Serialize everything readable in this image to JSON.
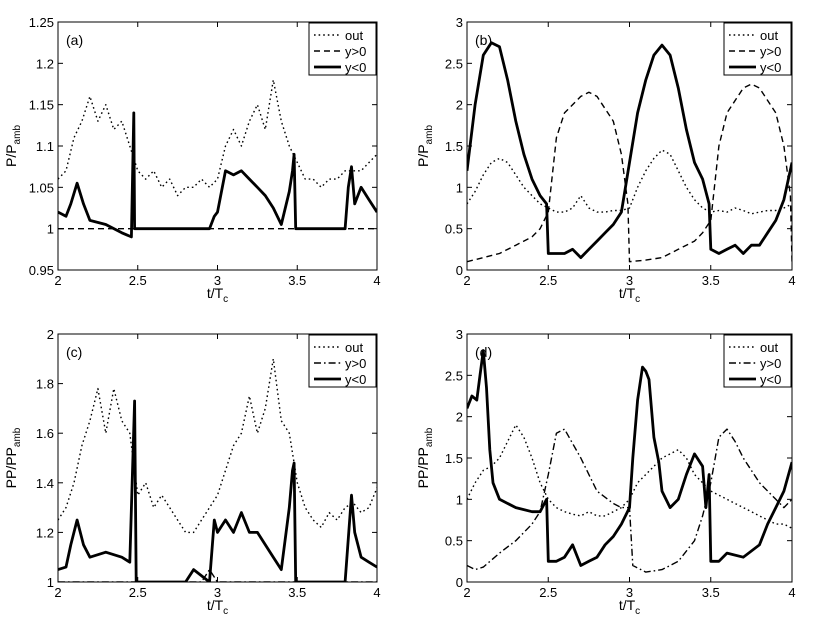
{
  "chart_data": [
    {
      "type": "line",
      "panel_label": "(a)",
      "xlabel": "t/T",
      "xlabel_sub": "c",
      "ylabel": "P/P",
      "ylabel_sub": "amb",
      "xlim": [
        2,
        4
      ],
      "ylim": [
        0.95,
        1.25
      ],
      "xticks": [
        "2",
        "2.5",
        "3",
        "3.5",
        "4"
      ],
      "yticks": [
        "0.95",
        "1",
        "1.05",
        "1.1",
        "1.15",
        "1.2",
        "1.25"
      ],
      "legend": [
        "out",
        "y>0",
        "y<0"
      ],
      "series": [
        {
          "name": "out",
          "style": "dotted",
          "x": [
            2,
            2.05,
            2.1,
            2.15,
            2.2,
            2.25,
            2.3,
            2.35,
            2.4,
            2.45,
            2.5,
            2.55,
            2.6,
            2.65,
            2.7,
            2.75,
            2.8,
            2.85,
            2.9,
            2.95,
            3,
            3.05,
            3.1,
            3.15,
            3.2,
            3.25,
            3.3,
            3.35,
            3.4,
            3.45,
            3.5,
            3.55,
            3.6,
            3.65,
            3.7,
            3.75,
            3.8,
            3.85,
            3.9,
            3.95,
            4
          ],
          "values": [
            1.06,
            1.07,
            1.11,
            1.13,
            1.16,
            1.13,
            1.15,
            1.12,
            1.13,
            1.1,
            1.07,
            1.06,
            1.07,
            1.05,
            1.06,
            1.04,
            1.05,
            1.05,
            1.06,
            1.05,
            1.06,
            1.1,
            1.12,
            1.1,
            1.13,
            1.15,
            1.12,
            1.18,
            1.13,
            1.1,
            1.08,
            1.06,
            1.06,
            1.05,
            1.06,
            1.06,
            1.07,
            1.07,
            1.07,
            1.08,
            1.09
          ]
        },
        {
          "name": "y>0",
          "style": "dashed",
          "x": [
            2,
            2.5,
            3,
            3.5,
            4
          ],
          "values": [
            1.0,
            1.0,
            1.0,
            1.0,
            1.0
          ]
        },
        {
          "name": "y<0",
          "style": "solid",
          "x": [
            2,
            2.05,
            2.08,
            2.12,
            2.16,
            2.2,
            2.3,
            2.4,
            2.46,
            2.475,
            2.48,
            2.49,
            2.5,
            2.51,
            2.55,
            2.8,
            2.85,
            2.95,
            2.98,
            3.0,
            3.05,
            3.1,
            3.15,
            3.2,
            3.25,
            3.3,
            3.35,
            3.4,
            3.45,
            3.47,
            3.48,
            3.49,
            3.5,
            3.55,
            3.75,
            3.8,
            3.82,
            3.84,
            3.86,
            3.9,
            3.95,
            4
          ],
          "values": [
            1.02,
            1.015,
            1.03,
            1.055,
            1.03,
            1.01,
            1.005,
            0.995,
            0.99,
            1.14,
            1.0,
            1.0,
            1.0,
            1.0,
            1.0,
            1.0,
            1.0,
            1.0,
            1.015,
            1.02,
            1.07,
            1.065,
            1.07,
            1.06,
            1.05,
            1.04,
            1.025,
            1.005,
            1.045,
            1.07,
            1.09,
            1.0,
            1.0,
            1.0,
            1.0,
            1.0,
            1.05,
            1.075,
            1.03,
            1.05,
            1.035,
            1.02
          ]
        }
      ]
    },
    {
      "type": "line",
      "panel_label": "(b)",
      "xlabel": "t/T",
      "xlabel_sub": "c",
      "ylabel": "P/P",
      "ylabel_sub": "amb",
      "xlim": [
        2,
        4
      ],
      "ylim": [
        0,
        3
      ],
      "xticks": [
        "2",
        "2.5",
        "3",
        "3.5",
        "4"
      ],
      "yticks": [
        "0",
        "0.5",
        "1",
        "1.5",
        "2",
        "2.5",
        "3"
      ],
      "legend": [
        "out",
        "y>0",
        "y<0"
      ],
      "series": [
        {
          "name": "out",
          "style": "dotted",
          "x": [
            2,
            2.05,
            2.1,
            2.15,
            2.2,
            2.25,
            2.3,
            2.35,
            2.4,
            2.45,
            2.5,
            2.55,
            2.6,
            2.65,
            2.7,
            2.75,
            2.8,
            2.85,
            2.9,
            2.95,
            3,
            3.05,
            3.1,
            3.15,
            3.2,
            3.25,
            3.3,
            3.35,
            3.4,
            3.45,
            3.5,
            3.55,
            3.6,
            3.65,
            3.7,
            3.75,
            3.8,
            3.85,
            3.9,
            3.95,
            4
          ],
          "values": [
            0.8,
            0.95,
            1.15,
            1.3,
            1.35,
            1.3,
            1.15,
            1.0,
            0.9,
            0.8,
            0.75,
            0.7,
            0.7,
            0.75,
            0.9,
            0.75,
            0.7,
            0.7,
            0.72,
            0.72,
            0.75,
            1.0,
            1.2,
            1.35,
            1.45,
            1.4,
            1.2,
            1.0,
            0.85,
            0.75,
            0.7,
            0.72,
            0.7,
            0.75,
            0.72,
            0.68,
            0.7,
            0.72,
            0.72,
            0.75,
            0.8
          ]
        },
        {
          "name": "y>0",
          "style": "dashed",
          "x": [
            2,
            2.1,
            2.2,
            2.3,
            2.4,
            2.45,
            2.5,
            2.55,
            2.6,
            2.7,
            2.75,
            2.8,
            2.9,
            2.95,
            2.99,
            3.0,
            3.1,
            3.2,
            3.3,
            3.4,
            3.45,
            3.5,
            3.55,
            3.6,
            3.7,
            3.75,
            3.8,
            3.9,
            3.95,
            3.99,
            4.0
          ],
          "values": [
            0.1,
            0.15,
            0.2,
            0.3,
            0.4,
            0.5,
            0.7,
            1.6,
            1.9,
            2.1,
            2.15,
            2.1,
            1.8,
            1.4,
            0.8,
            0.1,
            0.12,
            0.15,
            0.25,
            0.35,
            0.45,
            0.6,
            1.5,
            1.9,
            2.2,
            2.25,
            2.2,
            1.9,
            1.5,
            0.9,
            0.1
          ]
        },
        {
          "name": "y<0",
          "style": "solid",
          "x": [
            2,
            2.05,
            2.1,
            2.15,
            2.2,
            2.25,
            2.3,
            2.35,
            2.4,
            2.45,
            2.49,
            2.5,
            2.55,
            2.6,
            2.65,
            2.7,
            2.75,
            2.8,
            2.85,
            2.9,
            2.95,
            3.0,
            3.05,
            3.1,
            3.15,
            3.2,
            3.25,
            3.3,
            3.35,
            3.4,
            3.45,
            3.49,
            3.5,
            3.55,
            3.6,
            3.65,
            3.7,
            3.75,
            3.8,
            3.85,
            3.9,
            3.95,
            4.0
          ],
          "values": [
            1.2,
            2.0,
            2.6,
            2.75,
            2.7,
            2.3,
            1.8,
            1.4,
            1.1,
            0.9,
            0.8,
            0.2,
            0.2,
            0.2,
            0.25,
            0.15,
            0.25,
            0.35,
            0.45,
            0.55,
            0.7,
            1.3,
            1.9,
            2.3,
            2.6,
            2.72,
            2.6,
            2.2,
            1.7,
            1.3,
            1.1,
            0.8,
            0.25,
            0.2,
            0.25,
            0.3,
            0.2,
            0.3,
            0.3,
            0.45,
            0.6,
            0.85,
            1.3
          ]
        }
      ]
    },
    {
      "type": "line",
      "panel_label": "(c)",
      "xlabel": "t/T",
      "xlabel_sub": "c",
      "ylabel": "PP/PP",
      "ylabel_sub": "amb",
      "xlim": [
        2,
        4
      ],
      "ylim": [
        1,
        2
      ],
      "xticks": [
        "2",
        "2.5",
        "3",
        "3.5",
        "4"
      ],
      "yticks": [
        "1",
        "1.2",
        "1.4",
        "1.6",
        "1.8",
        "2"
      ],
      "legend": [
        "out",
        "y>0",
        "y<0"
      ],
      "series": [
        {
          "name": "out",
          "style": "dotted",
          "x": [
            2,
            2.05,
            2.1,
            2.15,
            2.2,
            2.25,
            2.3,
            2.35,
            2.4,
            2.45,
            2.5,
            2.55,
            2.6,
            2.65,
            2.7,
            2.75,
            2.8,
            2.85,
            2.9,
            2.95,
            3,
            3.05,
            3.1,
            3.15,
            3.2,
            3.25,
            3.3,
            3.35,
            3.4,
            3.45,
            3.5,
            3.55,
            3.6,
            3.65,
            3.7,
            3.75,
            3.8,
            3.85,
            3.9,
            3.95,
            4
          ],
          "values": [
            1.25,
            1.3,
            1.4,
            1.55,
            1.65,
            1.78,
            1.6,
            1.78,
            1.65,
            1.6,
            1.35,
            1.4,
            1.3,
            1.35,
            1.3,
            1.25,
            1.2,
            1.2,
            1.25,
            1.3,
            1.35,
            1.45,
            1.55,
            1.6,
            1.75,
            1.6,
            1.7,
            1.9,
            1.65,
            1.6,
            1.4,
            1.3,
            1.25,
            1.22,
            1.28,
            1.25,
            1.3,
            1.32,
            1.28,
            1.3,
            1.38
          ]
        },
        {
          "name": "y>0",
          "style": "dash-dot",
          "x": [
            2,
            2.5,
            2.9,
            2.95,
            3.0,
            3.5,
            4
          ],
          "values": [
            1.0,
            1.0,
            1.0,
            1.05,
            1.0,
            1.0,
            1.0
          ]
        },
        {
          "name": "y<0",
          "style": "solid",
          "x": [
            2,
            2.05,
            2.08,
            2.12,
            2.16,
            2.2,
            2.3,
            2.4,
            2.45,
            2.48,
            2.49,
            2.5,
            2.8,
            2.85,
            2.95,
            2.98,
            3.0,
            3.05,
            3.1,
            3.15,
            3.2,
            3.25,
            3.3,
            3.35,
            3.4,
            3.45,
            3.47,
            3.48,
            3.49,
            3.5,
            3.8,
            3.84,
            3.86,
            3.9,
            3.95,
            4
          ],
          "values": [
            1.05,
            1.06,
            1.15,
            1.25,
            1.15,
            1.1,
            1.12,
            1.1,
            1.08,
            1.73,
            1.0,
            1.0,
            1.0,
            1.05,
            1.0,
            1.25,
            1.2,
            1.25,
            1.2,
            1.28,
            1.2,
            1.2,
            1.15,
            1.1,
            1.05,
            1.3,
            1.45,
            1.48,
            1.0,
            1.0,
            1.0,
            1.35,
            1.2,
            1.1,
            1.08,
            1.06
          ]
        }
      ]
    },
    {
      "type": "line",
      "panel_label": "(d)",
      "xlabel": "t/T",
      "xlabel_sub": "c",
      "ylabel": "PP/PP",
      "ylabel_sub": "amb",
      "xlim": [
        2,
        4
      ],
      "ylim": [
        0,
        3
      ],
      "xticks": [
        "2",
        "2.5",
        "3",
        "3.5",
        "4"
      ],
      "yticks": [
        "0",
        "0.5",
        "1",
        "1.5",
        "2",
        "2.5",
        "3"
      ],
      "legend": [
        "out",
        "y>0",
        "y<0"
      ],
      "series": [
        {
          "name": "out",
          "style": "dotted",
          "x": [
            2,
            2.05,
            2.1,
            2.15,
            2.2,
            2.25,
            2.3,
            2.35,
            2.4,
            2.45,
            2.5,
            2.55,
            2.6,
            2.65,
            2.7,
            2.75,
            2.8,
            2.85,
            2.9,
            2.95,
            3,
            3.05,
            3.1,
            3.15,
            3.2,
            3.25,
            3.3,
            3.35,
            3.4,
            3.45,
            3.5,
            3.55,
            3.6,
            3.65,
            3.7,
            3.75,
            3.8,
            3.85,
            3.9,
            3.95,
            4
          ],
          "values": [
            1.0,
            1.2,
            1.35,
            1.4,
            1.5,
            1.7,
            1.9,
            1.75,
            1.5,
            1.2,
            1.0,
            0.9,
            0.85,
            0.82,
            0.8,
            0.85,
            0.8,
            0.8,
            0.85,
            0.9,
            1.0,
            1.2,
            1.3,
            1.4,
            1.5,
            1.55,
            1.6,
            1.5,
            1.3,
            1.2,
            1.1,
            1.05,
            1.0,
            0.95,
            0.9,
            0.85,
            0.8,
            0.75,
            0.7,
            0.7,
            0.65
          ]
        },
        {
          "name": "y>0",
          "style": "dash-dot",
          "x": [
            2,
            2.05,
            2.1,
            2.2,
            2.3,
            2.4,
            2.45,
            2.5,
            2.55,
            2.6,
            2.7,
            2.8,
            2.9,
            2.95,
            3.0,
            3.02,
            3.1,
            3.2,
            3.3,
            3.4,
            3.45,
            3.5,
            3.55,
            3.6,
            3.65,
            3.7,
            3.8,
            3.9,
            3.95,
            4.0
          ],
          "values": [
            0.2,
            0.15,
            0.18,
            0.35,
            0.5,
            0.7,
            0.85,
            1.3,
            1.8,
            1.85,
            1.5,
            1.1,
            0.95,
            0.9,
            0.9,
            0.2,
            0.12,
            0.15,
            0.25,
            0.5,
            0.8,
            1.2,
            1.75,
            1.85,
            1.7,
            1.5,
            1.2,
            1.0,
            0.9,
            1.0
          ]
        },
        {
          "name": "y<0",
          "style": "solid",
          "x": [
            2,
            2.03,
            2.06,
            2.08,
            2.1,
            2.12,
            2.14,
            2.16,
            2.2,
            2.3,
            2.4,
            2.45,
            2.49,
            2.5,
            2.55,
            2.6,
            2.65,
            2.7,
            2.75,
            2.8,
            2.85,
            2.9,
            2.95,
            3.0,
            3.02,
            3.05,
            3.08,
            3.1,
            3.12,
            3.15,
            3.18,
            3.2,
            3.25,
            3.3,
            3.35,
            3.4,
            3.45,
            3.47,
            3.49,
            3.5,
            3.55,
            3.6,
            3.7,
            3.8,
            3.85,
            3.9,
            3.95,
            4.0
          ],
          "values": [
            2.1,
            2.25,
            2.2,
            2.5,
            2.8,
            2.35,
            1.6,
            1.2,
            1.0,
            0.9,
            0.85,
            0.85,
            1.0,
            0.25,
            0.25,
            0.3,
            0.45,
            0.2,
            0.25,
            0.3,
            0.45,
            0.55,
            0.7,
            0.9,
            1.5,
            2.2,
            2.6,
            2.55,
            2.45,
            1.75,
            1.45,
            1.1,
            0.9,
            1.0,
            1.3,
            1.55,
            1.4,
            0.9,
            1.3,
            0.25,
            0.25,
            0.35,
            0.3,
            0.45,
            0.7,
            0.9,
            1.1,
            1.45
          ]
        }
      ]
    }
  ]
}
